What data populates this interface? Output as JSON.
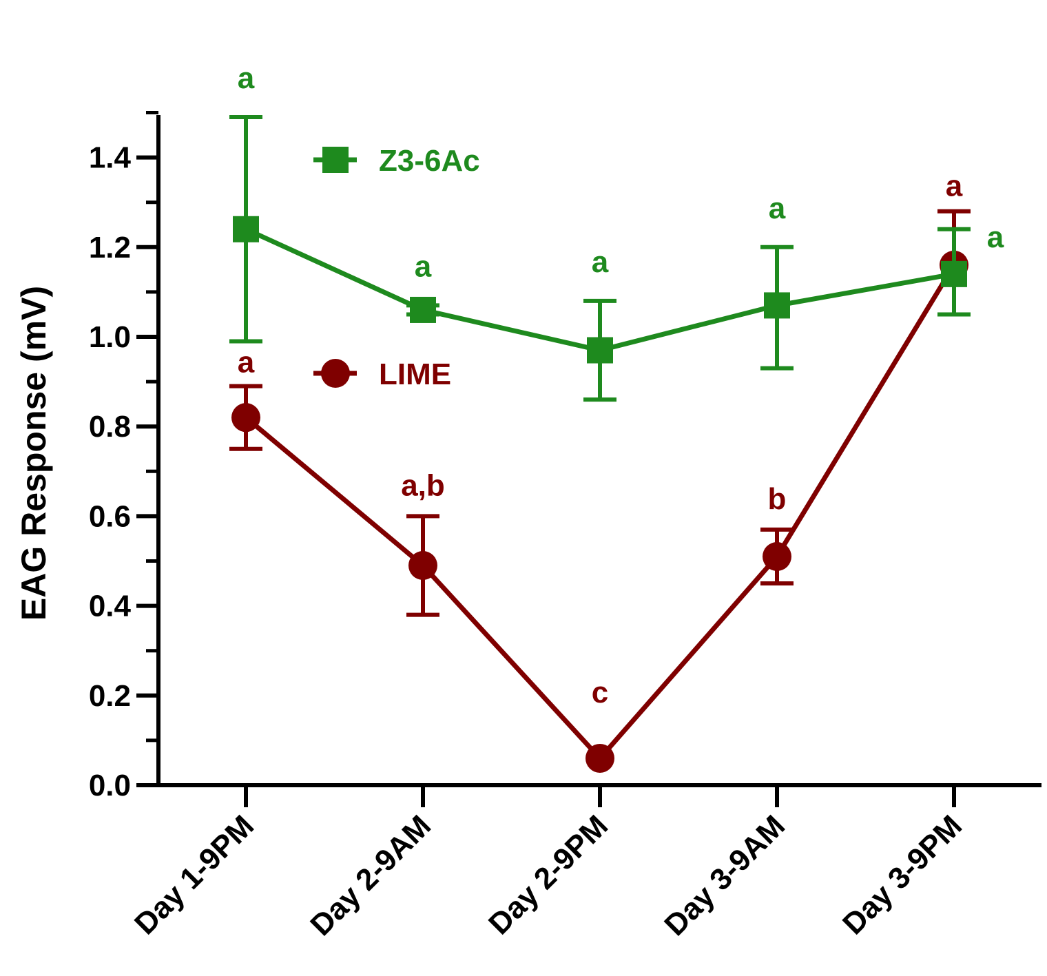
{
  "chart_data": {
    "type": "line",
    "ylabel": "EAG Response (mV)",
    "xlabel": "",
    "ylim": [
      0,
      1.4
    ],
    "yticks": [
      0.0,
      0.2,
      0.4,
      0.6,
      0.8,
      1.0,
      1.2,
      1.4
    ],
    "ytick_labels": [
      "0.0",
      "0.2",
      "0.4",
      "0.6",
      "0.8",
      "1.0",
      "1.2",
      "1.4"
    ],
    "categories": [
      "Day 1-9PM",
      "Day 2-9AM",
      "Day 2-9PM",
      "Day 3-9AM",
      "Day 3-9PM"
    ],
    "legend_position": "top-left",
    "grid": false,
    "series": [
      {
        "name": "Z3-6Ac",
        "color": "#1e8a1e",
        "marker": "square",
        "values": [
          1.24,
          1.06,
          0.97,
          1.07,
          1.14
        ],
        "err_low": [
          0.99,
          1.05,
          0.86,
          0.93,
          1.05
        ],
        "err_high": [
          1.49,
          1.07,
          1.08,
          1.2,
          1.24
        ],
        "letters": [
          "a",
          "a",
          "a",
          "a",
          "a"
        ]
      },
      {
        "name": "LIME",
        "color": "#7f0000",
        "marker": "circle",
        "values": [
          0.82,
          0.49,
          0.06,
          0.51,
          1.16
        ],
        "err_low": [
          0.75,
          0.38,
          0.06,
          0.45,
          1.05
        ],
        "err_high": [
          0.89,
          0.6,
          0.06,
          0.57,
          1.28
        ],
        "letters": [
          "a",
          "a,b",
          "c",
          "b",
          "a"
        ]
      }
    ]
  }
}
